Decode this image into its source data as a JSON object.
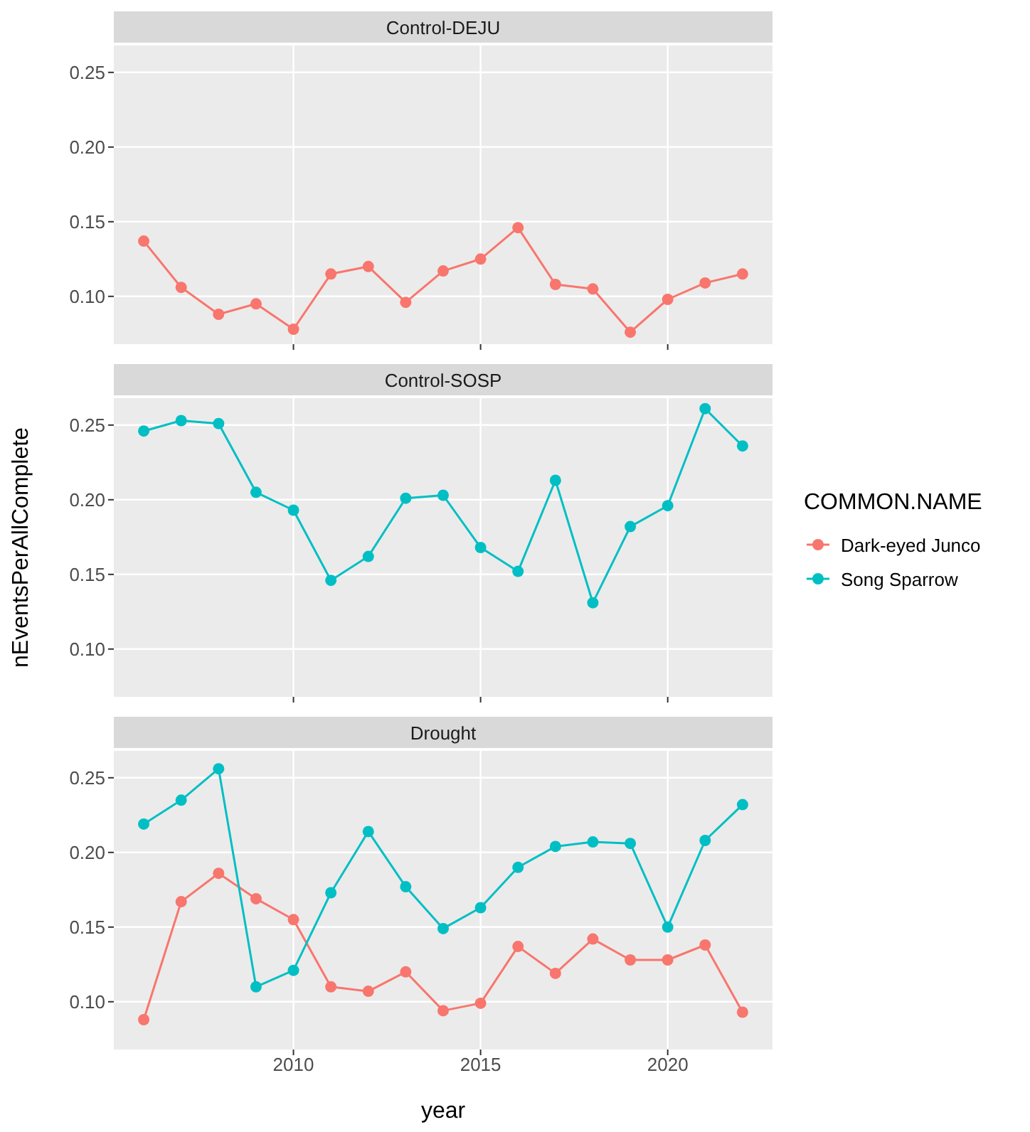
{
  "chart_data": [
    {
      "type": "line",
      "title": "Control-DEJU",
      "x": [
        2006,
        2007,
        2008,
        2009,
        2010,
        2011,
        2012,
        2013,
        2014,
        2015,
        2016,
        2017,
        2018,
        2019,
        2020,
        2021,
        2022
      ],
      "xlim": [
        2005.2,
        2022.8
      ],
      "xticks": [
        2010,
        2015,
        2020
      ],
      "ylim": [
        0.068,
        0.268
      ],
      "yticks": [
        {
          "value": 0.1,
          "label": "0.10"
        },
        {
          "value": 0.15,
          "label": "0.15"
        },
        {
          "value": 0.2,
          "label": "0.20"
        },
        {
          "value": 0.25,
          "label": "0.25"
        }
      ],
      "tick_labels": "y",
      "grid": true,
      "marker": "circle",
      "line_style": "solid",
      "series": [
        {
          "name": "Dark-eyed Junco",
          "color": "#f8766d",
          "values": [
            0.137,
            0.106,
            0.088,
            0.095,
            0.078,
            0.115,
            0.12,
            0.096,
            0.117,
            0.125,
            0.146,
            0.108,
            0.105,
            0.076,
            0.098,
            0.109,
            0.115
          ]
        }
      ]
    },
    {
      "type": "line",
      "title": "Control-SOSP",
      "ylabel": "nEventsPerAllComplete",
      "legend_title": "COMMON.NAME",
      "legend": "right",
      "x": [
        2006,
        2007,
        2008,
        2009,
        2010,
        2011,
        2012,
        2013,
        2014,
        2015,
        2016,
        2017,
        2018,
        2019,
        2020,
        2021,
        2022
      ],
      "xlim": [
        2005.2,
        2022.8
      ],
      "xticks": [
        2010,
        2015,
        2020
      ],
      "ylim": [
        0.068,
        0.268
      ],
      "yticks": [
        {
          "value": 0.1,
          "label": "0.10"
        },
        {
          "value": 0.15,
          "label": "0.15"
        },
        {
          "value": 0.2,
          "label": "0.20"
        },
        {
          "value": 0.25,
          "label": "0.25"
        }
      ],
      "tick_labels": "y",
      "grid": true,
      "marker": "circle",
      "line_style": "solid",
      "series": [
        {
          "name": "Song Sparrow",
          "color": "#00bfc4",
          "values": [
            0.246,
            0.253,
            0.251,
            0.205,
            0.193,
            0.146,
            0.162,
            0.201,
            0.203,
            0.168,
            0.152,
            0.213,
            0.131,
            0.182,
            0.196,
            0.261,
            0.236
          ]
        }
      ]
    },
    {
      "type": "line",
      "title": "Drought",
      "xlabel": "year",
      "x": [
        2006,
        2007,
        2008,
        2009,
        2010,
        2011,
        2012,
        2013,
        2014,
        2015,
        2016,
        2017,
        2018,
        2019,
        2020,
        2021,
        2022
      ],
      "xlim": [
        2005.2,
        2022.8
      ],
      "xticks": [
        2010,
        2015,
        2020
      ],
      "ylim": [
        0.068,
        0.268
      ],
      "yticks": [
        {
          "value": 0.1,
          "label": "0.10"
        },
        {
          "value": 0.15,
          "label": "0.15"
        },
        {
          "value": 0.2,
          "label": "0.20"
        },
        {
          "value": 0.25,
          "label": "0.25"
        }
      ],
      "grid": true,
      "marker": "circle",
      "line_style": "solid",
      "series": [
        {
          "name": "Dark-eyed Junco",
          "color": "#f8766d",
          "values": [
            0.088,
            0.167,
            0.186,
            0.169,
            0.155,
            0.11,
            0.107,
            0.12,
            0.094,
            0.099,
            0.137,
            0.119,
            0.142,
            0.128,
            0.128,
            0.138,
            0.093
          ]
        },
        {
          "name": "Song Sparrow",
          "color": "#00bfc4",
          "values": [
            0.219,
            0.235,
            0.256,
            0.11,
            0.121,
            0.173,
            0.214,
            0.177,
            0.149,
            0.163,
            0.19,
            0.204,
            0.207,
            0.206,
            0.15,
            0.208,
            0.232
          ]
        }
      ]
    }
  ]
}
